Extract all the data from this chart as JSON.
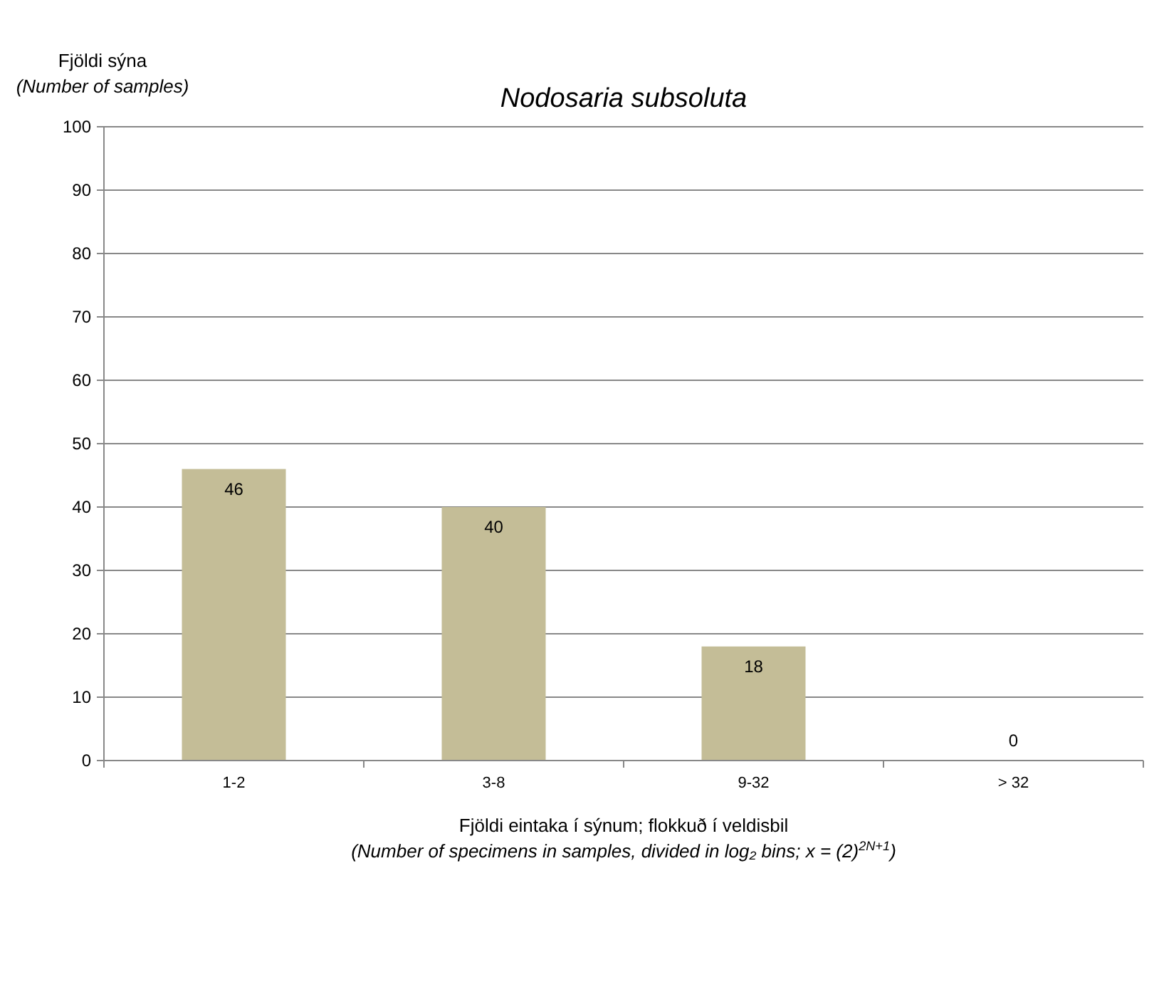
{
  "chart_data": {
    "type": "bar",
    "title": "Nodosaria subsoluta",
    "ylabel": "Fjöldi sýna\n(Number of samples)",
    "xlabel": "Fjöldi eintaka í sýnum; flokkuð í  veldisbil\n(Number of specimens in samples, divided in log₂ bins; x = (2)$^{2N+1}$)",
    "categories": [
      "1-2",
      "3-8",
      "9-32",
      "> 32"
    ],
    "values": [
      46,
      40,
      18,
      0
    ],
    "color": "#c4bd97",
    "ylim": [
      0,
      100
    ],
    "yticks": [
      0,
      10,
      20,
      30,
      40,
      50,
      60,
      70,
      80,
      90,
      100
    ],
    "grid": "y",
    "data_labels": true
  }
}
